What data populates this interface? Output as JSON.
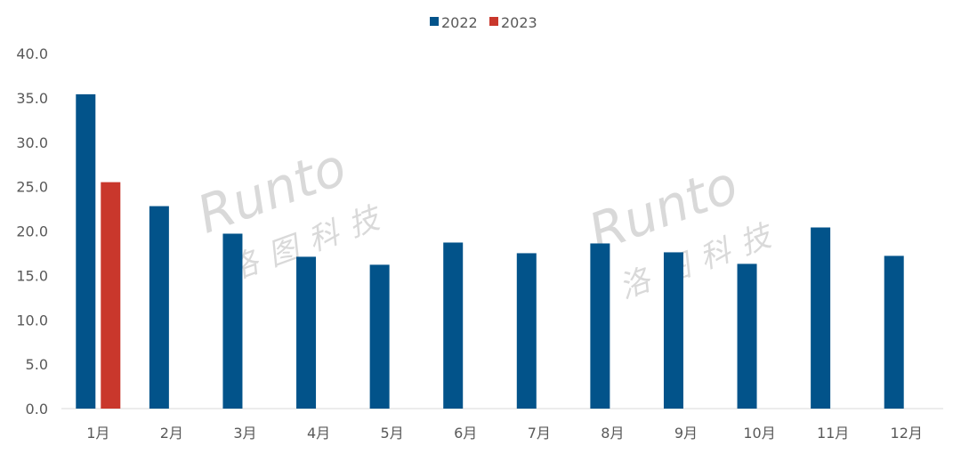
{
  "chart_data": {
    "type": "bar",
    "categories": [
      "1月",
      "2月",
      "3月",
      "4月",
      "5月",
      "6月",
      "7月",
      "8月",
      "9月",
      "10月",
      "11月",
      "12月"
    ],
    "series": [
      {
        "name": "2022",
        "color": "#02538A",
        "values": [
          35.4,
          22.8,
          19.7,
          17.1,
          16.2,
          18.7,
          17.5,
          18.6,
          17.6,
          16.3,
          20.4,
          17.2
        ]
      },
      {
        "name": "2023",
        "color": "#C9372C",
        "values": [
          25.5,
          null,
          null,
          null,
          null,
          null,
          null,
          null,
          null,
          null,
          null,
          null
        ]
      }
    ],
    "ylim": [
      0,
      40
    ],
    "yticks": [
      "0.0",
      "5.0",
      "10.0",
      "15.0",
      "20.0",
      "25.0",
      "30.0",
      "35.0",
      "40.0"
    ],
    "grid": false,
    "legend": "top-center",
    "title": "",
    "xlabel": "",
    "ylabel": ""
  },
  "watermark": {
    "latin": "Runto",
    "cjk": "洛图科技"
  }
}
